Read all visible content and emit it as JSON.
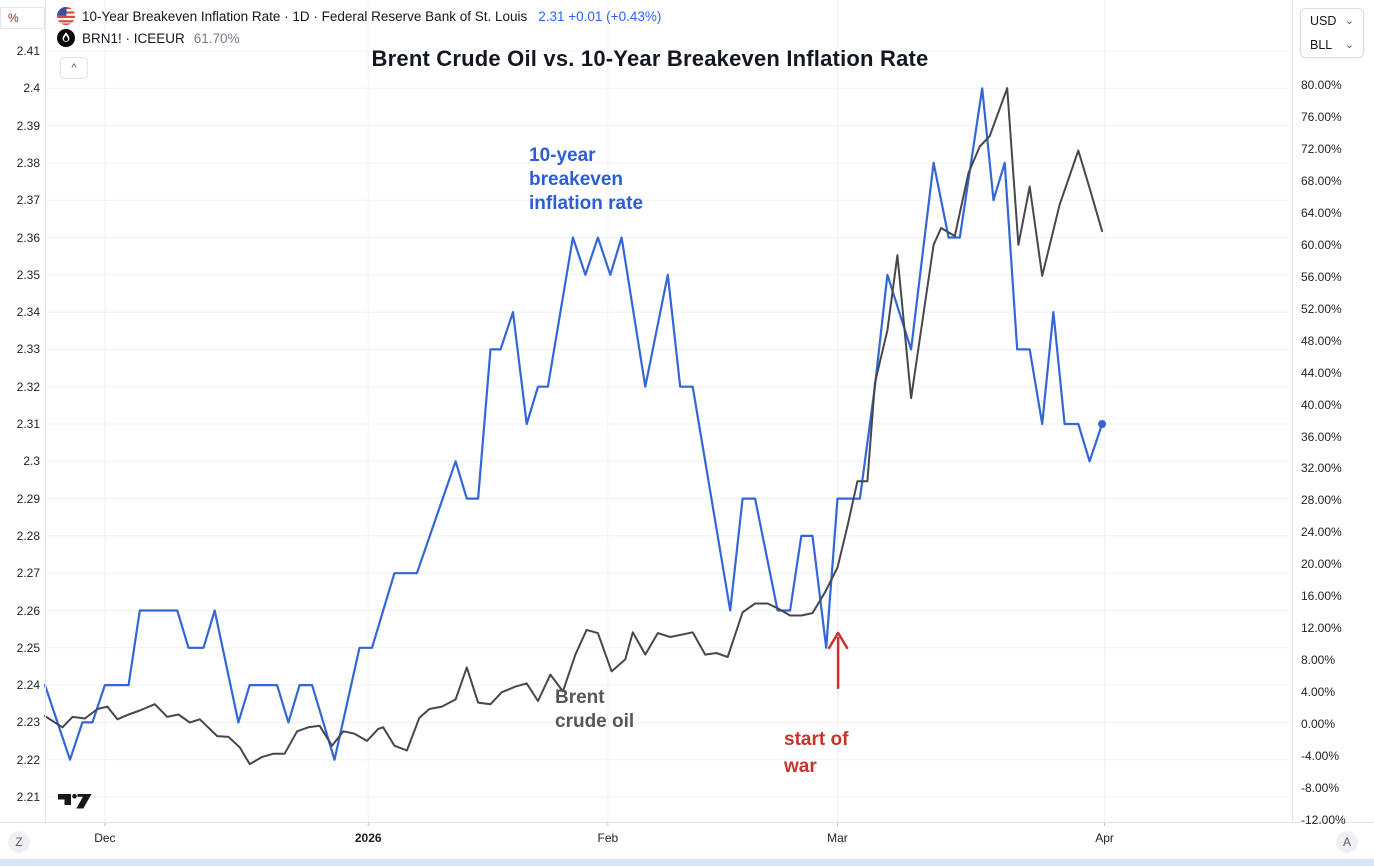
{
  "toolbar": {
    "percent_button": "%",
    "collapse_button": "^"
  },
  "legend": {
    "row1": {
      "icon": "us-flag-icon",
      "symbol_title": "10-Year Breakeven Inflation Rate · 1D · Federal Reserve Bank of St. Louis",
      "value_change": "2.31 +0.01 (+0.43%)"
    },
    "row2": {
      "icon": "ice-icon",
      "symbol_title": "BRN1! · ICEEUR",
      "value": "61.70%"
    }
  },
  "controls": {
    "currency": "USD",
    "unit": "BLL",
    "timezone_button": "Z",
    "auto_button": "A"
  },
  "chart_data": {
    "type": "line",
    "title": "Brent Crude Oil vs. 10-Year Breakeven Inflation Rate",
    "grid": true,
    "left_axis": {
      "unit": "%",
      "max": 2.41,
      "min": 2.21,
      "ticks": [
        {
          "label": "2.41",
          "v": 2.41
        },
        {
          "label": "2.4",
          "v": 2.4
        },
        {
          "label": "2.39",
          "v": 2.39
        },
        {
          "label": "2.38",
          "v": 2.38
        },
        {
          "label": "2.37",
          "v": 2.37
        },
        {
          "label": "2.36",
          "v": 2.36
        },
        {
          "label": "2.35",
          "v": 2.35
        },
        {
          "label": "2.34",
          "v": 2.34
        },
        {
          "label": "2.33",
          "v": 2.33
        },
        {
          "label": "2.32",
          "v": 2.32
        },
        {
          "label": "2.31",
          "v": 2.31
        },
        {
          "label": "2.3",
          "v": 2.3
        },
        {
          "label": "2.29",
          "v": 2.29
        },
        {
          "label": "2.28",
          "v": 2.28
        },
        {
          "label": "2.27",
          "v": 2.27
        },
        {
          "label": "2.26",
          "v": 2.26
        },
        {
          "label": "2.25",
          "v": 2.25
        },
        {
          "label": "2.24",
          "v": 2.24
        },
        {
          "label": "2.23",
          "v": 2.23
        },
        {
          "label": "2.22",
          "v": 2.22
        },
        {
          "label": "2.21",
          "v": 2.21
        }
      ]
    },
    "right_axis": {
      "unit": "%",
      "max": 80,
      "min": -12,
      "ticks": [
        {
          "label": "80.00%",
          "v": 80
        },
        {
          "label": "76.00%",
          "v": 76
        },
        {
          "label": "72.00%",
          "v": 72
        },
        {
          "label": "68.00%",
          "v": 68
        },
        {
          "label": "64.00%",
          "v": 64
        },
        {
          "label": "60.00%",
          "v": 60
        },
        {
          "label": "56.00%",
          "v": 56
        },
        {
          "label": "52.00%",
          "v": 52
        },
        {
          "label": "48.00%",
          "v": 48
        },
        {
          "label": "44.00%",
          "v": 44
        },
        {
          "label": "40.00%",
          "v": 40
        },
        {
          "label": "36.00%",
          "v": 36
        },
        {
          "label": "32.00%",
          "v": 32
        },
        {
          "label": "28.00%",
          "v": 28
        },
        {
          "label": "24.00%",
          "v": 24
        },
        {
          "label": "20.00%",
          "v": 20
        },
        {
          "label": "16.00%",
          "v": 16
        },
        {
          "label": "12.00%",
          "v": 12
        },
        {
          "label": "8.00%",
          "v": 8
        },
        {
          "label": "4.00%",
          "v": 4
        },
        {
          "label": "0.00%",
          "v": 0
        },
        {
          "label": "-4.00%",
          "v": -4
        },
        {
          "label": "-8.00%",
          "v": -8
        },
        {
          "label": "-12.00%",
          "v": -12
        }
      ]
    },
    "x_axis": {
      "ticks": [
        {
          "label": "Dec",
          "f": 0.048,
          "strong": false
        },
        {
          "label": "2026",
          "f": 0.259,
          "strong": true
        },
        {
          "label": "Feb",
          "f": 0.451,
          "strong": false
        },
        {
          "label": "Mar",
          "f": 0.635,
          "strong": false
        },
        {
          "label": "Apr",
          "f": 0.849,
          "strong": false
        }
      ]
    },
    "series": [
      {
        "name": "10-year breakeven inflation rate",
        "axis": "left",
        "color": "#3366d6",
        "width": 2.2,
        "end_dot": true,
        "points": [
          [
            0.0,
            2.24
          ],
          [
            0.02,
            2.22
          ],
          [
            0.03,
            2.23
          ],
          [
            0.038,
            2.23
          ],
          [
            0.048,
            2.24
          ],
          [
            0.067,
            2.24
          ],
          [
            0.076,
            2.26
          ],
          [
            0.106,
            2.26
          ],
          [
            0.115,
            2.25
          ],
          [
            0.127,
            2.25
          ],
          [
            0.136,
            2.26
          ],
          [
            0.155,
            2.23
          ],
          [
            0.164,
            2.24
          ],
          [
            0.186,
            2.24
          ],
          [
            0.195,
            2.23
          ],
          [
            0.204,
            2.24
          ],
          [
            0.214,
            2.24
          ],
          [
            0.232,
            2.22
          ],
          [
            0.252,
            2.25
          ],
          [
            0.262,
            2.25
          ],
          [
            0.28,
            2.27
          ],
          [
            0.298,
            2.27
          ],
          [
            0.329,
            2.3
          ],
          [
            0.338,
            2.29
          ],
          [
            0.347,
            2.29
          ],
          [
            0.357,
            2.33
          ],
          [
            0.365,
            2.33
          ],
          [
            0.375,
            2.34
          ],
          [
            0.386,
            2.31
          ],
          [
            0.395,
            2.32
          ],
          [
            0.403,
            2.32
          ],
          [
            0.423,
            2.36
          ],
          [
            0.433,
            2.35
          ],
          [
            0.443,
            2.36
          ],
          [
            0.453,
            2.35
          ],
          [
            0.462,
            2.36
          ],
          [
            0.481,
            2.32
          ],
          [
            0.499,
            2.35
          ],
          [
            0.509,
            2.32
          ],
          [
            0.519,
            2.32
          ],
          [
            0.549,
            2.26
          ],
          [
            0.559,
            2.29
          ],
          [
            0.569,
            2.29
          ],
          [
            0.587,
            2.26
          ],
          [
            0.597,
            2.26
          ],
          [
            0.606,
            2.28
          ],
          [
            0.615,
            2.28
          ],
          [
            0.626,
            2.25
          ],
          [
            0.635,
            2.29
          ],
          [
            0.653,
            2.29
          ],
          [
            0.665,
            2.32
          ],
          [
            0.675,
            2.35
          ],
          [
            0.694,
            2.33
          ],
          [
            0.712,
            2.38
          ],
          [
            0.724,
            2.36
          ],
          [
            0.733,
            2.36
          ],
          [
            0.751,
            2.4
          ],
          [
            0.76,
            2.37
          ],
          [
            0.769,
            2.38
          ],
          [
            0.779,
            2.33
          ],
          [
            0.789,
            2.33
          ],
          [
            0.799,
            2.31
          ],
          [
            0.808,
            2.34
          ],
          [
            0.817,
            2.31
          ],
          [
            0.828,
            2.31
          ],
          [
            0.837,
            2.3
          ],
          [
            0.847,
            2.31
          ]
        ]
      },
      {
        "name": "Brent crude oil",
        "axis": "right",
        "color": "#46484d",
        "width": 2,
        "end_dot": false,
        "points": [
          [
            0.0,
            1.0
          ],
          [
            0.014,
            -0.4
          ],
          [
            0.022,
            0.9
          ],
          [
            0.032,
            0.7
          ],
          [
            0.042,
            1.9
          ],
          [
            0.05,
            2.2
          ],
          [
            0.058,
            0.6
          ],
          [
            0.067,
            1.2
          ],
          [
            0.076,
            1.7
          ],
          [
            0.088,
            2.5
          ],
          [
            0.098,
            0.9
          ],
          [
            0.107,
            1.2
          ],
          [
            0.116,
            0.2
          ],
          [
            0.124,
            0.6
          ],
          [
            0.138,
            -1.5
          ],
          [
            0.147,
            -1.6
          ],
          [
            0.156,
            -2.9
          ],
          [
            0.164,
            -5.0
          ],
          [
            0.174,
            -4.1
          ],
          [
            0.183,
            -3.7
          ],
          [
            0.192,
            -3.7
          ],
          [
            0.202,
            -0.9
          ],
          [
            0.211,
            -0.4
          ],
          [
            0.22,
            -0.2
          ],
          [
            0.23,
            -2.7
          ],
          [
            0.239,
            -0.9
          ],
          [
            0.248,
            -1.2
          ],
          [
            0.258,
            -2.1
          ],
          [
            0.267,
            -0.6
          ],
          [
            0.271,
            -0.4
          ],
          [
            0.28,
            -2.7
          ],
          [
            0.29,
            -3.3
          ],
          [
            0.3,
            0.8
          ],
          [
            0.308,
            1.9
          ],
          [
            0.318,
            2.2
          ],
          [
            0.329,
            3.1
          ],
          [
            0.338,
            7.1
          ],
          [
            0.347,
            2.7
          ],
          [
            0.357,
            2.5
          ],
          [
            0.366,
            4.0
          ],
          [
            0.377,
            4.7
          ],
          [
            0.386,
            5.1
          ],
          [
            0.395,
            2.9
          ],
          [
            0.405,
            6.2
          ],
          [
            0.415,
            4.1
          ],
          [
            0.425,
            8.7
          ],
          [
            0.434,
            11.8
          ],
          [
            0.443,
            11.4
          ],
          [
            0.454,
            6.6
          ],
          [
            0.465,
            8.1
          ],
          [
            0.471,
            11.5
          ],
          [
            0.481,
            8.7
          ],
          [
            0.491,
            11.4
          ],
          [
            0.501,
            10.9
          ],
          [
            0.51,
            11.2
          ],
          [
            0.519,
            11.5
          ],
          [
            0.529,
            8.7
          ],
          [
            0.538,
            8.9
          ],
          [
            0.547,
            8.4
          ],
          [
            0.559,
            14.0
          ],
          [
            0.569,
            15.1
          ],
          [
            0.579,
            15.1
          ],
          [
            0.587,
            14.5
          ],
          [
            0.597,
            13.6
          ],
          [
            0.606,
            13.6
          ],
          [
            0.615,
            13.9
          ],
          [
            0.625,
            16.5
          ],
          [
            0.635,
            19.6
          ],
          [
            0.643,
            24.8
          ],
          [
            0.651,
            30.4
          ],
          [
            0.659,
            30.4
          ],
          [
            0.665,
            42.7
          ],
          [
            0.675,
            49.3
          ],
          [
            0.683,
            58.7
          ],
          [
            0.694,
            40.8
          ],
          [
            0.712,
            60.0
          ],
          [
            0.718,
            62.1
          ],
          [
            0.729,
            61.1
          ],
          [
            0.74,
            69.0
          ],
          [
            0.749,
            72.3
          ],
          [
            0.757,
            73.6
          ],
          [
            0.771,
            79.6
          ],
          [
            0.78,
            60.0
          ],
          [
            0.789,
            67.3
          ],
          [
            0.799,
            56.1
          ],
          [
            0.813,
            65.0
          ],
          [
            0.828,
            71.8
          ],
          [
            0.837,
            67.1
          ],
          [
            0.847,
            61.7
          ]
        ]
      }
    ],
    "annotations": {
      "blue_label": {
        "lines": [
          "10-year",
          "breakeven",
          "inflation rate"
        ],
        "color": "#2d5fd0"
      },
      "gray_label": {
        "lines": [
          "Brent",
          "crude oil"
        ],
        "color": "#55575c"
      },
      "red_label": {
        "lines": [
          "start of",
          "war"
        ],
        "color": "#c7342c",
        "arrow": {
          "f": 0.6355,
          "tip_value": 2.254,
          "tail_value": 2.239
        }
      }
    },
    "legend_position": "top-left"
  }
}
